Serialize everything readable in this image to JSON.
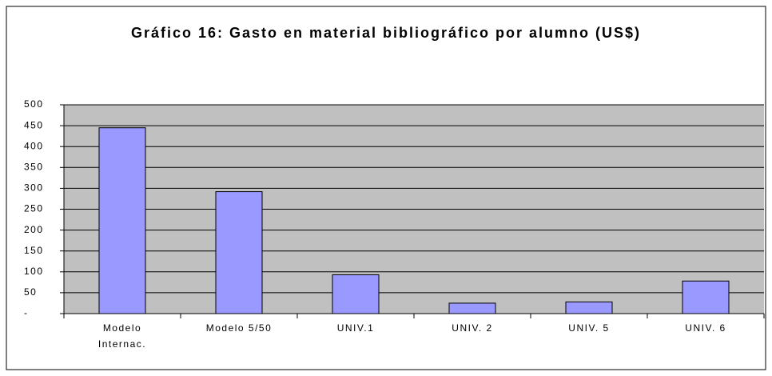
{
  "chart_data": {
    "type": "bar",
    "title": "Gráfico 16:  Gasto en material bibliográfico por alumno (US$)",
    "categories": [
      "Modelo Internac.",
      "Modelo 5/50",
      "UNIV.1",
      "UNIV. 2",
      "UNIV. 5",
      "UNIV. 6"
    ],
    "values": [
      445,
      292,
      93,
      25,
      28,
      78
    ],
    "color": "#9999ff",
    "ylim": [
      0,
      500
    ],
    "yticks": [
      {
        "value": 0,
        "label": "-"
      },
      50,
      100,
      150,
      200,
      250,
      300,
      350,
      400,
      450,
      500
    ],
    "grid": true
  }
}
